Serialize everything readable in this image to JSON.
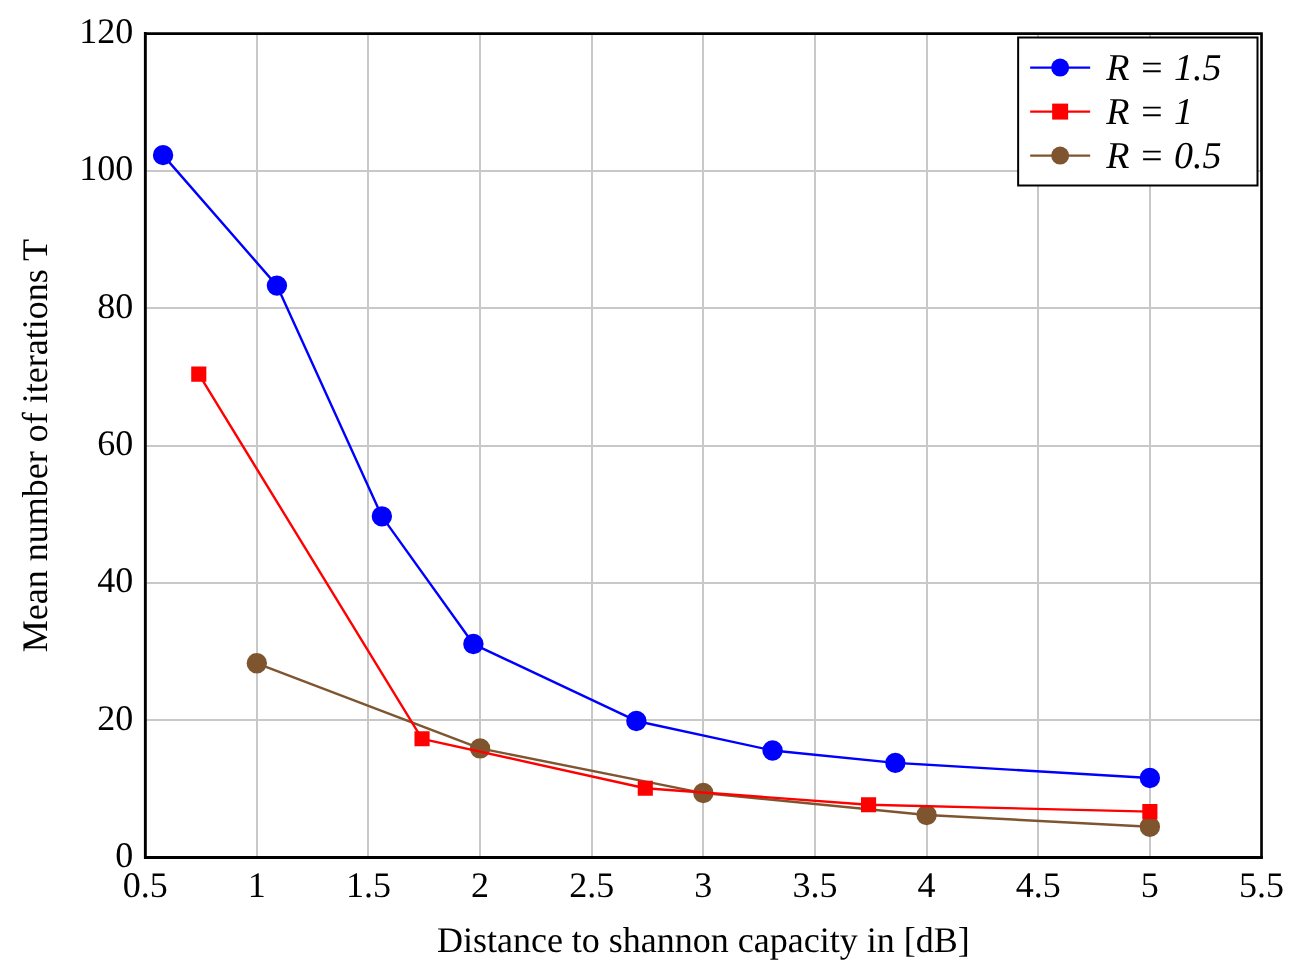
{
  "chart_data": {
    "type": "line",
    "xlabel": "Distance to shannon capacity in [dB]",
    "ylabel": "Mean number of iterations T",
    "xlim": [
      0.5,
      5.5
    ],
    "xticks": [
      0.5,
      1,
      1.5,
      2,
      2.5,
      3,
      3.5,
      4,
      4.5,
      5,
      5.5
    ],
    "ylim": [
      0,
      120
    ],
    "yticks": [
      0,
      20,
      40,
      60,
      80,
      100,
      120
    ],
    "grid": true,
    "legend": "top right",
    "line_style": "solid",
    "series": [
      {
        "name": "R = 1.5",
        "color": "#0000ff",
        "marker": "circle",
        "x": [
          0.58,
          1.09,
          1.56,
          1.97,
          2.7,
          3.31,
          3.86,
          5
        ],
        "values": [
          102.3,
          83.3,
          49.7,
          31.1,
          19.9,
          15.6,
          13.8,
          11.6
        ]
      },
      {
        "name": "R = 1",
        "color": "#ff0000",
        "marker": "square",
        "x": [
          0.74,
          1.74,
          2.74,
          3.74,
          5
        ],
        "values": [
          70.4,
          17.3,
          10.1,
          7.7,
          6.7
        ]
      },
      {
        "name": "R = 0.5",
        "color": "#7f5530",
        "marker": "circle",
        "x": [
          1,
          2,
          3,
          4,
          5
        ],
        "values": [
          28.3,
          15.9,
          9.4,
          6.2,
          4.5
        ]
      }
    ]
  }
}
